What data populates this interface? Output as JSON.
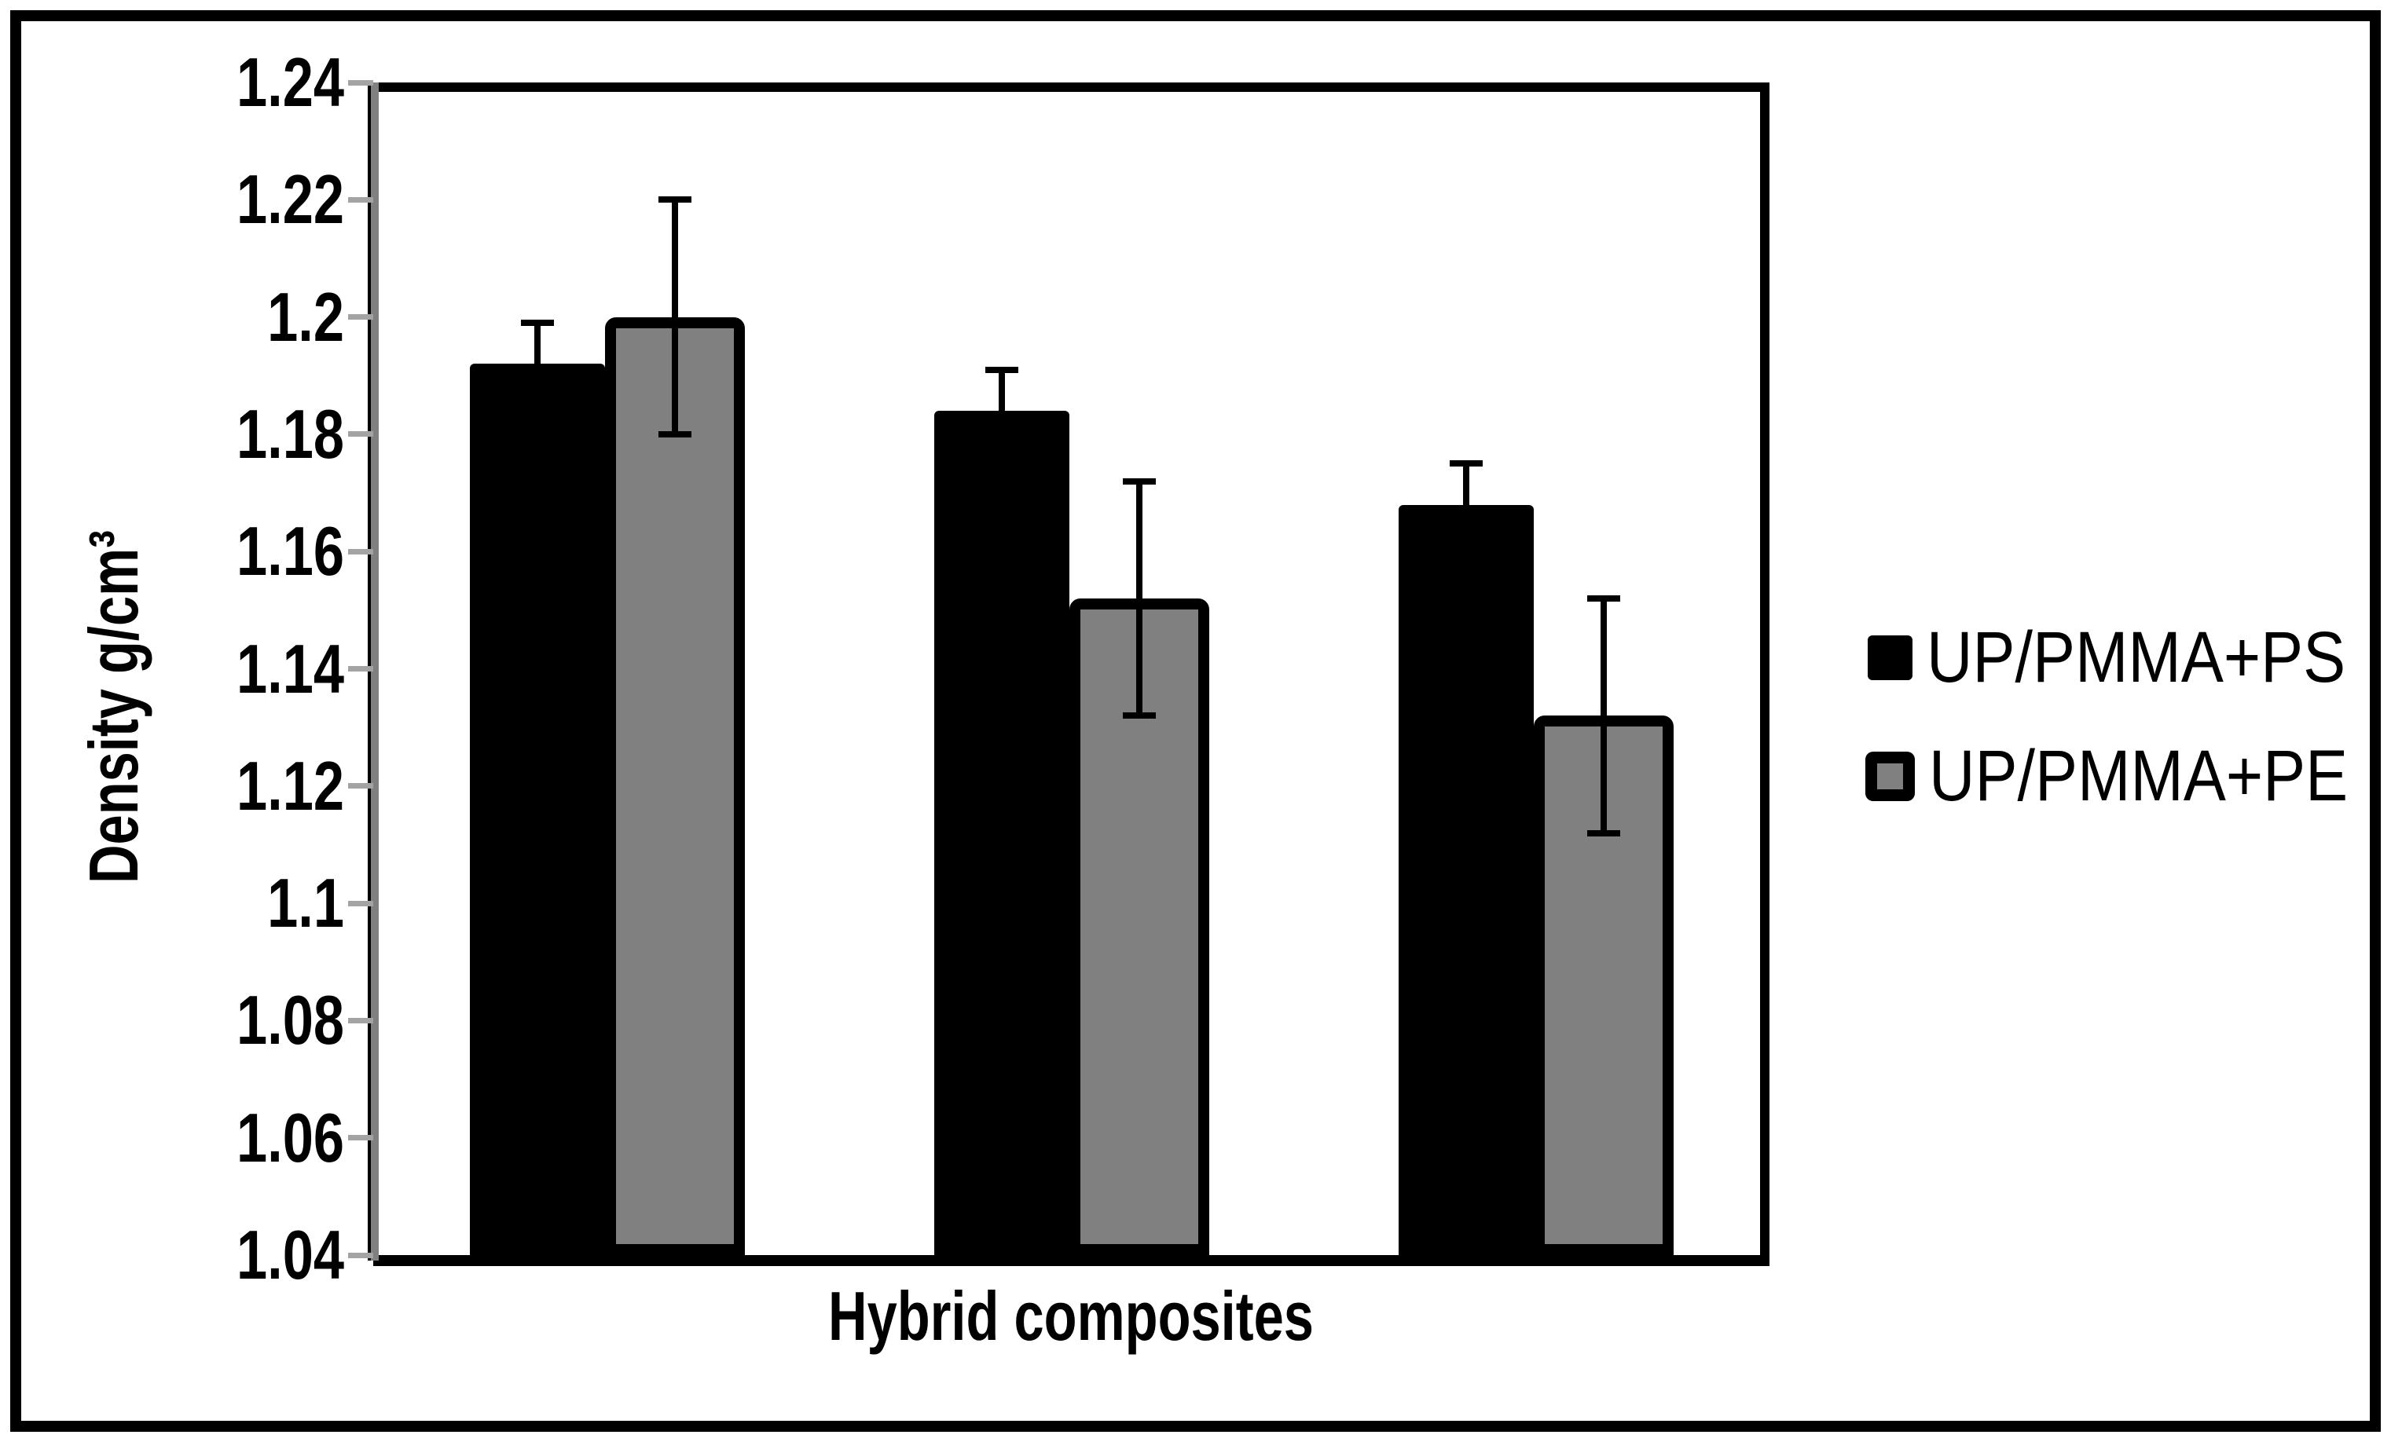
{
  "chart_data": {
    "type": "bar",
    "title": "",
    "xlabel": "Hybrid composites",
    "ylabel": "Density g/cm³",
    "ylim": [
      1.04,
      1.24
    ],
    "ytick_step": 0.02,
    "ytick_labels": [
      "1.24",
      "1.22",
      "1.2",
      "1.18",
      "1.16",
      "1.14",
      "1.12",
      "1.1",
      "1.08",
      "1.06",
      "1.04"
    ],
    "categories": [
      "",
      "",
      ""
    ],
    "series": [
      {
        "name": "UP/PMMA+PS",
        "color": "#000000",
        "values": [
          1.192,
          1.184,
          1.168
        ],
        "errors": [
          0.007,
          0.007,
          0.007
        ]
      },
      {
        "name": "UP/PMMA+PE",
        "color": "#808080",
        "values": [
          1.2,
          1.152,
          1.132
        ],
        "errors": [
          0.02,
          0.02,
          0.02
        ]
      }
    ],
    "error_bars": true,
    "grid": false,
    "legend_position": "right"
  },
  "legend": {
    "items": [
      {
        "label": "UP/PMMA+PS",
        "swatch": "black-square"
      },
      {
        "label": "UP/PMMA+PE",
        "swatch": "gray-square-black-border"
      }
    ]
  },
  "colors": {
    "bar_black": "#000000",
    "bar_gray": "#808080",
    "tick_gray": "#a3a3a3",
    "frame": "#000000",
    "background": "#ffffff"
  }
}
